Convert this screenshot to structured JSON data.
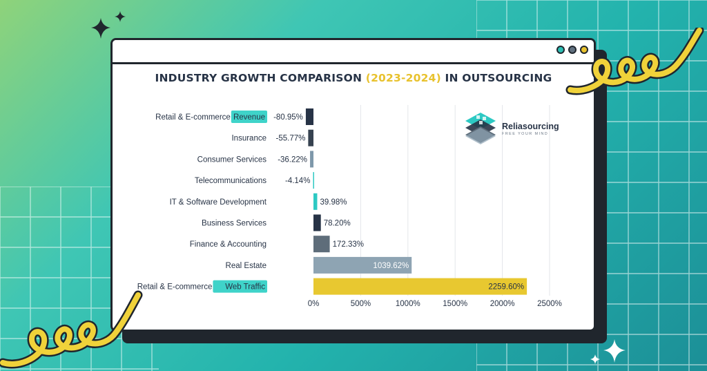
{
  "title": {
    "before": "INDUSTRY GROWTH COMPARISON ",
    "highlight": "(2023-2024)",
    "after": " IN OUTSOURCING"
  },
  "brand": {
    "name": "Reliasourcing",
    "tagline": "FREE YOUR MIND"
  },
  "colors": {
    "background_start": "#8fd37a",
    "background_end": "#1c8f97",
    "title": "#273346",
    "highlight": "#e8c22e",
    "label_highlight": "#3fd3c9"
  },
  "window_dots": [
    "#2dbfb4",
    "#60707f",
    "#e8c22e"
  ],
  "chart_data": {
    "type": "bar",
    "orientation": "horizontal",
    "categories": [
      {
        "text": "Retail & E-commerce ",
        "highlight": "Revenue"
      },
      {
        "text": "Insurance",
        "highlight": ""
      },
      {
        "text": "Consumer Services",
        "highlight": ""
      },
      {
        "text": "Telecommunications",
        "highlight": ""
      },
      {
        "text": "IT & Software Development",
        "highlight": ""
      },
      {
        "text": "Business Services",
        "highlight": ""
      },
      {
        "text": "Finance & Accounting",
        "highlight": ""
      },
      {
        "text": "Real Estate",
        "highlight": ""
      },
      {
        "text": "Retail & E-commerce ",
        "highlight": "Web Traffic"
      }
    ],
    "values": [
      -80.95,
      -55.77,
      -36.22,
      -4.14,
      39.98,
      78.2,
      172.33,
      1039.62,
      2259.6
    ],
    "value_labels": [
      "-80.95%",
      "-55.77%",
      "-36.22%",
      "-4.14%",
      "39.98%",
      "78.20%",
      "172.33%",
      "1039.62%",
      "2259.60%"
    ],
    "bar_colors": [
      "#273346",
      "#364250",
      "#7e98aa",
      "#2dc9c3",
      "#2dc9c3",
      "#273346",
      "#5e6d7a",
      "#8ea4b3",
      "#e8c830"
    ],
    "label_inside": [
      false,
      false,
      false,
      false,
      false,
      false,
      false,
      true,
      true
    ],
    "xlim": [
      0,
      2500
    ],
    "xticks": [
      0,
      500,
      1000,
      1500,
      2000,
      2500
    ],
    "xtick_labels": [
      "0%",
      "500%",
      "1000%",
      "1500%",
      "2000%",
      "2500%"
    ],
    "grid": true
  }
}
